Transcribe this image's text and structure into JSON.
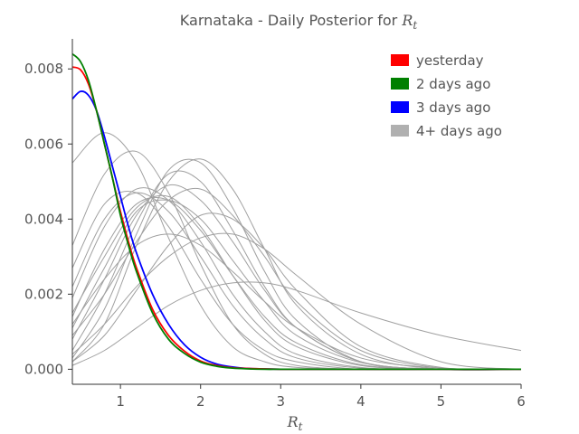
{
  "chart_data": {
    "type": "line",
    "title_prefix": "Karnataka - Daily Posterior for ",
    "title_var": "R",
    "title_sub": "t",
    "xlabel_var": "R",
    "xlabel_sub": "t",
    "xlim": [
      0.4,
      6.0
    ],
    "ylim": [
      -0.0004,
      0.0088
    ],
    "xticks": [
      1,
      2,
      3,
      4,
      5,
      6
    ],
    "xtick_labels": [
      "1",
      "2",
      "3",
      "4",
      "5",
      "6"
    ],
    "yticks": [
      0.0,
      0.002,
      0.004,
      0.006,
      0.008
    ],
    "ytick_labels": [
      "0.000",
      "0.002",
      "0.004",
      "0.006",
      "0.008"
    ],
    "grid": false,
    "legend_position": "top-right",
    "colors": {
      "yesterday": "#ff0000",
      "two_days_ago": "#008000",
      "three_days_ago": "#0000ff",
      "older": "#a0a0a0",
      "axis": "#333333",
      "text": "#555555"
    },
    "legend": [
      {
        "label": "yesterday",
        "color": "#ff0000"
      },
      {
        "label": "2 days ago",
        "color": "#008000"
      },
      {
        "label": "3 days ago",
        "color": "#0000ff"
      },
      {
        "label": "4+ days ago",
        "color": "#b0b0b0"
      }
    ],
    "series": [
      {
        "name": "yesterday",
        "color": "#ff0000",
        "kind": "recent",
        "x": [
          0.4,
          0.5,
          0.6,
          0.7,
          0.8,
          0.9,
          1.0,
          1.1,
          1.2,
          1.4,
          1.6,
          1.8,
          2.0,
          2.2,
          2.4,
          2.6,
          2.8,
          3.0,
          3.4,
          4.0,
          5.0,
          6.0
        ],
        "y": [
          0.00805,
          0.00798,
          0.0076,
          0.0069,
          0.006,
          0.0051,
          0.0042,
          0.0034,
          0.0027,
          0.0016,
          0.0009,
          0.00048,
          0.00022,
          0.0001,
          4e-05,
          2e-05,
          1e-05,
          0.0,
          0.0,
          0.0,
          0.0,
          0.0
        ]
      },
      {
        "name": "2 days ago",
        "color": "#008000",
        "kind": "recent",
        "x": [
          0.4,
          0.5,
          0.6,
          0.7,
          0.8,
          0.9,
          1.0,
          1.1,
          1.2,
          1.4,
          1.6,
          1.8,
          2.0,
          2.2,
          2.4,
          2.6,
          2.8,
          3.0,
          3.4,
          4.0,
          5.0,
          6.0
        ],
        "y": [
          0.0084,
          0.0082,
          0.0077,
          0.0069,
          0.006,
          0.0051,
          0.0041,
          0.0033,
          0.0026,
          0.0015,
          0.0008,
          0.00042,
          0.00019,
          8e-05,
          3e-05,
          1e-05,
          0.0,
          0.0,
          0.0,
          0.0,
          0.0,
          0.0
        ]
      },
      {
        "name": "3 days ago",
        "color": "#0000ff",
        "kind": "recent",
        "x": [
          0.4,
          0.5,
          0.6,
          0.7,
          0.8,
          0.9,
          1.0,
          1.1,
          1.2,
          1.4,
          1.6,
          1.8,
          2.0,
          2.2,
          2.4,
          2.6,
          2.8,
          3.0,
          3.4,
          4.0,
          5.0,
          6.0
        ],
        "y": [
          0.0072,
          0.0074,
          0.0073,
          0.0069,
          0.0062,
          0.0054,
          0.0046,
          0.0038,
          0.0031,
          0.002,
          0.0012,
          0.00065,
          0.00032,
          0.00014,
          6e-05,
          2e-05,
          1e-05,
          0.0,
          0.0,
          0.0,
          0.0,
          0.0
        ]
      },
      {
        "name": "",
        "color": "#a0a0a0",
        "kind": "older",
        "x": [
          0.4,
          0.8,
          1.2,
          1.6,
          2.0,
          2.4,
          2.8,
          3.2,
          4.0,
          5.0,
          6.0
        ],
        "y": [
          0.0055,
          0.0063,
          0.0055,
          0.0035,
          0.0017,
          0.0006,
          0.0002,
          5e-05,
          0.0,
          0.0,
          0.0
        ]
      },
      {
        "name": "",
        "color": "#a0a0a0",
        "kind": "older",
        "x": [
          0.4,
          0.8,
          1.2,
          1.6,
          2.0,
          2.4,
          2.8,
          3.2,
          4.0,
          5.0,
          6.0
        ],
        "y": [
          0.0033,
          0.0052,
          0.0058,
          0.0047,
          0.0028,
          0.0012,
          0.0004,
          0.0001,
          0.0,
          0.0,
          0.0
        ]
      },
      {
        "name": "",
        "color": "#a0a0a0",
        "kind": "older",
        "x": [
          0.4,
          0.8,
          1.2,
          1.6,
          2.0,
          2.4,
          2.8,
          3.2,
          4.0,
          5.0,
          6.0
        ],
        "y": [
          0.0027,
          0.0044,
          0.0047,
          0.0038,
          0.0024,
          0.0012,
          0.0005,
          0.0002,
          0.0,
          0.0,
          0.0
        ]
      },
      {
        "name": "",
        "color": "#a0a0a0",
        "kind": "older",
        "x": [
          0.4,
          0.8,
          1.2,
          1.6,
          2.0,
          2.4,
          2.8,
          3.2,
          4.0,
          5.0,
          6.0
        ],
        "y": [
          0.0022,
          0.004,
          0.0047,
          0.0042,
          0.003,
          0.0017,
          0.0008,
          0.0003,
          3e-05,
          0.0,
          0.0
        ]
      },
      {
        "name": "",
        "color": "#a0a0a0",
        "kind": "older",
        "x": [
          0.4,
          0.8,
          1.2,
          1.6,
          2.0,
          2.4,
          2.8,
          3.2,
          4.0,
          5.0,
          6.0
        ],
        "y": [
          0.0019,
          0.0038,
          0.0048,
          0.0045,
          0.0034,
          0.002,
          0.001,
          0.0004,
          5e-05,
          0.0,
          0.0
        ]
      },
      {
        "name": "",
        "color": "#a0a0a0",
        "kind": "older",
        "x": [
          0.4,
          0.8,
          1.2,
          1.6,
          2.0,
          2.4,
          2.8,
          3.2,
          4.0,
          5.0,
          6.0
        ],
        "y": [
          0.0014,
          0.0032,
          0.0044,
          0.0045,
          0.0037,
          0.0025,
          0.0014,
          0.0007,
          0.00012,
          0.0,
          0.0
        ]
      },
      {
        "name": "",
        "color": "#a0a0a0",
        "kind": "older",
        "x": [
          0.4,
          0.8,
          1.2,
          1.6,
          2.0,
          2.4,
          2.8,
          3.2,
          4.0,
          5.0,
          6.0
        ],
        "y": [
          0.0011,
          0.0027,
          0.0042,
          0.0045,
          0.004,
          0.0029,
          0.0018,
          0.0009,
          0.00018,
          0.0,
          0.0
        ]
      },
      {
        "name": "",
        "color": "#a0a0a0",
        "kind": "older",
        "x": [
          0.4,
          0.8,
          1.2,
          1.6,
          2.0,
          2.4,
          2.8,
          3.2,
          4.0,
          5.0,
          6.0
        ],
        "y": [
          0.0008,
          0.0024,
          0.0041,
          0.0049,
          0.0045,
          0.0034,
          0.0021,
          0.0011,
          0.0002,
          0.0,
          0.0
        ]
      },
      {
        "name": "",
        "color": "#a0a0a0",
        "kind": "older",
        "x": [
          0.4,
          0.8,
          1.2,
          1.6,
          2.0,
          2.4,
          2.8,
          3.2,
          4.0,
          5.0,
          6.0
        ],
        "y": [
          0.0005,
          0.002,
          0.0039,
          0.0052,
          0.005,
          0.0037,
          0.0022,
          0.0011,
          0.0002,
          0.0,
          0.0
        ]
      },
      {
        "name": "",
        "color": "#a0a0a0",
        "kind": "older",
        "x": [
          0.4,
          0.8,
          1.2,
          1.6,
          2.0,
          2.4,
          2.8,
          3.2,
          4.0,
          5.0,
          6.0
        ],
        "y": [
          0.0003,
          0.0016,
          0.0036,
          0.0053,
          0.0055,
          0.0043,
          0.0026,
          0.0013,
          0.0002,
          0.0,
          0.0
        ]
      },
      {
        "name": "",
        "color": "#a0a0a0",
        "kind": "older",
        "x": [
          0.4,
          0.8,
          1.2,
          1.6,
          2.0,
          2.4,
          2.8,
          3.2,
          4.0,
          5.0,
          6.0
        ],
        "y": [
          0.0002,
          0.0012,
          0.0033,
          0.005,
          0.0056,
          0.0048,
          0.0032,
          0.0017,
          0.0004,
          0.0,
          0.0
        ]
      },
      {
        "name": "",
        "color": "#a0a0a0",
        "kind": "older",
        "x": [
          0.4,
          0.8,
          1.2,
          1.6,
          2.0,
          2.4,
          2.8,
          3.2,
          4.0,
          5.0,
          6.0
        ],
        "y": [
          0.0012,
          0.0024,
          0.0033,
          0.0036,
          0.0033,
          0.0026,
          0.0018,
          0.0011,
          0.0003,
          3e-05,
          0.0
        ]
      },
      {
        "name": "",
        "color": "#a0a0a0",
        "kind": "older",
        "x": [
          0.4,
          0.8,
          1.2,
          1.6,
          2.0,
          2.4,
          2.8,
          3.2,
          4.0,
          5.0,
          6.0
        ],
        "y": [
          0.0004,
          0.0012,
          0.0022,
          0.003,
          0.0035,
          0.0036,
          0.0032,
          0.0025,
          0.0012,
          0.0002,
          0.0
        ]
      },
      {
        "name": "",
        "color": "#a0a0a0",
        "kind": "older",
        "x": [
          0.4,
          0.8,
          1.2,
          1.6,
          2.0,
          2.4,
          2.8,
          3.2,
          4.0,
          5.0,
          6.0
        ],
        "y": [
          0.0002,
          0.0009,
          0.0021,
          0.0033,
          0.0041,
          0.004,
          0.0032,
          0.0021,
          0.0006,
          5e-05,
          0.0
        ]
      },
      {
        "name": "",
        "color": "#a0a0a0",
        "kind": "older",
        "x": [
          0.4,
          0.8,
          1.2,
          1.6,
          2.0,
          2.4,
          2.8,
          3.2,
          4.0,
          5.0,
          6.0
        ],
        "y": [
          0.0001,
          0.0005,
          0.0011,
          0.0017,
          0.0021,
          0.0023,
          0.0023,
          0.0021,
          0.0015,
          0.0009,
          0.0005
        ]
      },
      {
        "name": "",
        "color": "#a0a0a0",
        "kind": "older",
        "x": [
          0.4,
          0.8,
          1.2,
          1.6,
          2.0,
          2.4,
          2.8,
          3.2,
          4.0,
          5.0,
          6.0
        ],
        "y": [
          0.0009,
          0.002,
          0.0034,
          0.0045,
          0.0048,
          0.0041,
          0.003,
          0.0018,
          0.0005,
          3e-05,
          0.0
        ]
      },
      {
        "name": "",
        "color": "#a0a0a0",
        "kind": "older",
        "x": [
          0.4,
          0.8,
          1.2,
          1.6,
          2.0,
          2.4,
          2.8,
          3.2,
          4.0,
          5.0,
          6.0
        ],
        "y": [
          0.0015,
          0.003,
          0.0043,
          0.0046,
          0.0038,
          0.0025,
          0.0013,
          0.0006,
          0.0001,
          0.0,
          0.0
        ]
      }
    ]
  }
}
